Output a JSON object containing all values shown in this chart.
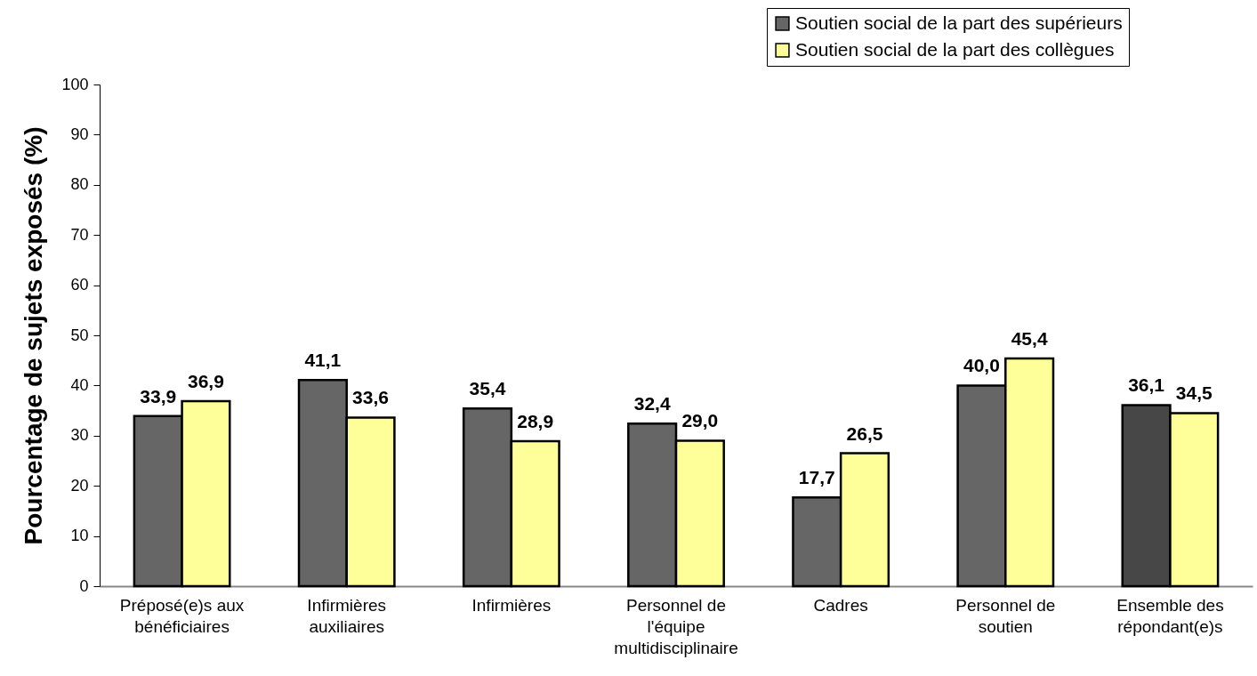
{
  "chart_data": {
    "type": "bar",
    "ylabel": "Pourcentage de sujets exposés (%)",
    "categories": [
      "Préposé(e)s aux bénéficiaires",
      "Infirmières auxiliaires",
      "Infirmières",
      "Personnel de l'équipe multidisciplinaire",
      "Cadres",
      "Personnel de soutien",
      "Ensemble des répondant(e)s"
    ],
    "series": [
      {
        "name": "Soutien social de la part des supérieurs",
        "color": "#666666",
        "colors": [
          "#666666",
          "#666666",
          "#666666",
          "#666666",
          "#666666",
          "#666666",
          "#474747"
        ],
        "values": [
          33.9,
          41.1,
          35.4,
          32.4,
          17.7,
          40.0,
          36.1
        ],
        "value_labels": [
          "33,9",
          "41,1",
          "35,4",
          "32,4",
          "17,7",
          "40,0",
          "36,1"
        ]
      },
      {
        "name": "Soutien social de la part des collègues",
        "color": "#ffff99",
        "values": [
          36.9,
          33.6,
          28.9,
          29.0,
          26.5,
          45.4,
          34.5
        ],
        "value_labels": [
          "36,9",
          "33,6",
          "28,9",
          "29,0",
          "26,5",
          "45,4",
          "34,5"
        ]
      }
    ],
    "ylim": [
      0,
      100
    ],
    "yticks": [
      0,
      10,
      20,
      30,
      40,
      50,
      60,
      70,
      80,
      90,
      100
    ],
    "grid": false,
    "legend": "top right"
  }
}
